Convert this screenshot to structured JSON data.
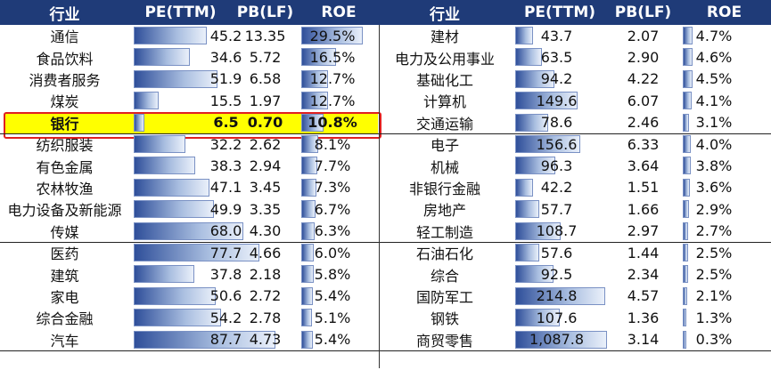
{
  "headers": [
    "行业",
    "PE(TTM)",
    "PB(LF)",
    "ROE",
    "行业",
    "PE(TTM)",
    "PB(LF)",
    "ROE"
  ],
  "left": [
    {
      "industry": "通信",
      "pe": "45.2",
      "pb": "13.35",
      "roe": "29.5%",
      "pe_v": 45.2,
      "roe_v": 29.5
    },
    {
      "industry": "食品饮料",
      "pe": "34.6",
      "pb": "5.72",
      "roe": "16.5%",
      "pe_v": 34.6,
      "roe_v": 16.5
    },
    {
      "industry": "消费者服务",
      "pe": "51.9",
      "pb": "6.58",
      "roe": "12.7%",
      "pe_v": 51.9,
      "roe_v": 12.7
    },
    {
      "industry": "煤炭",
      "pe": "15.5",
      "pb": "1.97",
      "roe": "12.7%",
      "pe_v": 15.5,
      "roe_v": 12.7
    },
    {
      "industry": "银行",
      "pe": "6.5",
      "pb": "0.70",
      "roe": "10.8%",
      "pe_v": 6.5,
      "roe_v": 10.8,
      "highlight": true
    },
    {
      "industry": "纺织服装",
      "pe": "32.2",
      "pb": "2.62",
      "roe": "8.1%",
      "pe_v": 32.2,
      "roe_v": 8.1
    },
    {
      "industry": "有色金属",
      "pe": "38.3",
      "pb": "2.94",
      "roe": "7.7%",
      "pe_v": 38.3,
      "roe_v": 7.7
    },
    {
      "industry": "农林牧渔",
      "pe": "47.1",
      "pb": "3.45",
      "roe": "7.3%",
      "pe_v": 47.1,
      "roe_v": 7.3
    },
    {
      "industry": "电力设备及新能源",
      "pe": "49.9",
      "pb": "3.35",
      "roe": "6.7%",
      "pe_v": 49.9,
      "roe_v": 6.7
    },
    {
      "industry": "传媒",
      "pe": "68.0",
      "pb": "4.30",
      "roe": "6.3%",
      "pe_v": 68.0,
      "roe_v": 6.3
    },
    {
      "industry": "医药",
      "pe": "77.7",
      "pb": "4.66",
      "roe": "6.0%",
      "pe_v": 77.7,
      "roe_v": 6.0
    },
    {
      "industry": "建筑",
      "pe": "37.8",
      "pb": "2.18",
      "roe": "5.8%",
      "pe_v": 37.8,
      "roe_v": 5.8
    },
    {
      "industry": "家电",
      "pe": "50.6",
      "pb": "2.72",
      "roe": "5.4%",
      "pe_v": 50.6,
      "roe_v": 5.4
    },
    {
      "industry": "综合金融",
      "pe": "54.2",
      "pb": "2.78",
      "roe": "5.1%",
      "pe_v": 54.2,
      "roe_v": 5.1
    },
    {
      "industry": "汽车",
      "pe": "87.7",
      "pb": "4.73",
      "roe": "5.4%",
      "pe_v": 87.7,
      "roe_v": 5.4
    }
  ],
  "right": [
    {
      "industry": "建材",
      "pe": "43.7",
      "pb": "2.07",
      "roe": "4.7%",
      "pe_v": 43.7,
      "roe_v": 4.7
    },
    {
      "industry": "电力及公用事业",
      "pe": "63.5",
      "pb": "2.90",
      "roe": "4.6%",
      "pe_v": 63.5,
      "roe_v": 4.6
    },
    {
      "industry": "基础化工",
      "pe": "94.2",
      "pb": "4.22",
      "roe": "4.5%",
      "pe_v": 94.2,
      "roe_v": 4.5
    },
    {
      "industry": "计算机",
      "pe": "149.6",
      "pb": "6.07",
      "roe": "4.1%",
      "pe_v": 149.6,
      "roe_v": 4.1
    },
    {
      "industry": "交通运输",
      "pe": "78.6",
      "pb": "2.46",
      "roe": "3.1%",
      "pe_v": 78.6,
      "roe_v": 3.1
    },
    {
      "industry": "电子",
      "pe": "156.6",
      "pb": "6.33",
      "roe": "4.0%",
      "pe_v": 156.6,
      "roe_v": 4.0
    },
    {
      "industry": "机械",
      "pe": "96.3",
      "pb": "3.64",
      "roe": "3.8%",
      "pe_v": 96.3,
      "roe_v": 3.8
    },
    {
      "industry": "非银行金融",
      "pe": "42.2",
      "pb": "1.51",
      "roe": "3.6%",
      "pe_v": 42.2,
      "roe_v": 3.6
    },
    {
      "industry": "房地产",
      "pe": "57.7",
      "pb": "1.66",
      "roe": "2.9%",
      "pe_v": 57.7,
      "roe_v": 2.9
    },
    {
      "industry": "轻工制造",
      "pe": "108.7",
      "pb": "2.97",
      "roe": "2.7%",
      "pe_v": 108.7,
      "roe_v": 2.7
    },
    {
      "industry": "石油石化",
      "pe": "57.6",
      "pb": "1.44",
      "roe": "2.5%",
      "pe_v": 57.6,
      "roe_v": 2.5
    },
    {
      "industry": "综合",
      "pe": "92.5",
      "pb": "2.34",
      "roe": "2.5%",
      "pe_v": 92.5,
      "roe_v": 2.5
    },
    {
      "industry": "国防军工",
      "pe": "214.8",
      "pb": "4.57",
      "roe": "2.1%",
      "pe_v": 214.8,
      "roe_v": 2.1
    },
    {
      "industry": "钢铁",
      "pe": "107.6",
      "pb": "1.36",
      "roe": "1.3%",
      "pe_v": 107.6,
      "roe_v": 1.3
    },
    {
      "industry": "商贸零售",
      "pe": "1,087.8",
      "pb": "3.14",
      "roe": "0.3%",
      "pe_v": 1087.8,
      "roe_v": 0.3
    }
  ],
  "colors": {
    "header_bg": "#1f3b78",
    "highlight": "#ffff00",
    "highlight_border": "#e02020",
    "bar_dark": "#2f4f9a",
    "bar_light": "#eaf0fa"
  }
}
